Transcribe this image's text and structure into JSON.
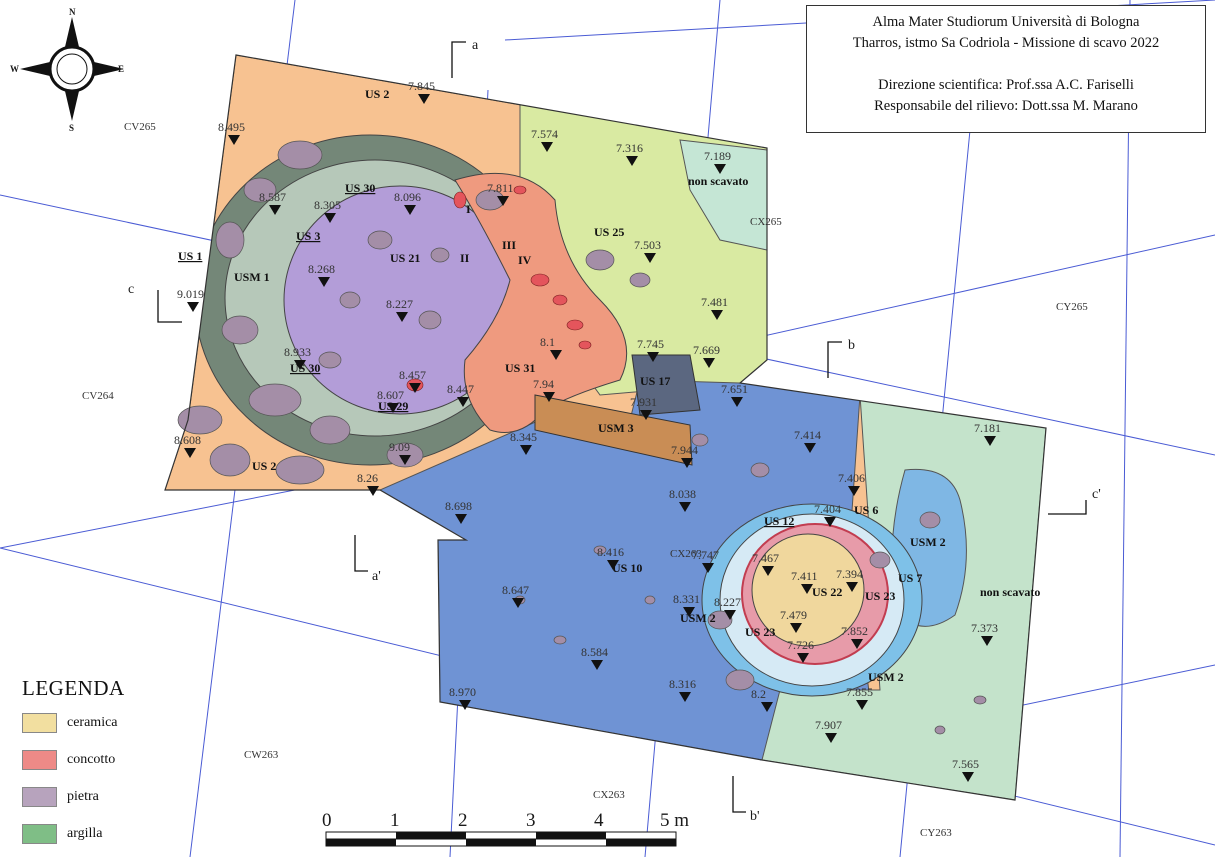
{
  "title_block": {
    "line1": "Alma Mater Studiorum Università di Bologna",
    "line2": "Tharros, istmo Sa Codriola - Missione di scavo 2022",
    "line3": "Direzione scientifica: Prof.ssa A.C. Fariselli",
    "line4": "Responsabile del rilievo: Dott.ssa M. Marano"
  },
  "compass": {
    "n": "N",
    "s": "S",
    "e": "E",
    "w": "W"
  },
  "legend": {
    "title": "LEGENDA",
    "items": [
      {
        "label": "ceramica",
        "color": "#f2dfa0"
      },
      {
        "label": "concotto",
        "color": "#ee8a87"
      },
      {
        "label": "pietra",
        "color": "#b7a3bd"
      },
      {
        "label": "argilla",
        "color": "#7fbe86"
      }
    ]
  },
  "scale_bar": {
    "ticks": [
      "0",
      "1",
      "2",
      "3",
      "4",
      "5 m"
    ]
  },
  "grid_labels": [
    "CV265",
    "CX265",
    "CY265",
    "CV264",
    "CW263",
    "CX263",
    "CY263",
    "CX263"
  ],
  "sections": [
    "a",
    "a'",
    "b",
    "b'",
    "c",
    "c'"
  ],
  "us_labels": [
    "US 2",
    "US 30",
    "US 3",
    "US 1",
    "USM 1",
    "US 21",
    "I",
    "II",
    "III",
    "IV",
    "US 25",
    "US 30",
    "US 29",
    "US 31",
    "US 17",
    "USM 3",
    "US 2",
    "US 10",
    "US 12",
    "US 6",
    "USM 2",
    "US 7",
    "US 22",
    "US 23",
    "US 23",
    "USM 2",
    "USM 2",
    "non scavato",
    "non scavato"
  ],
  "elevations": [
    "7.845",
    "8.495",
    "7.574",
    "7.316",
    "7.189",
    "8.587",
    "8.096",
    "8.305",
    "7.811",
    "7.503",
    "8.268",
    "9.019",
    "8.227",
    "7.481",
    "8.933",
    "8.1",
    "7.745",
    "7.669",
    "8.457",
    "8.607",
    "8.447",
    "7.94",
    "7.931",
    "7.651",
    "8.345",
    "7.414",
    "8.608",
    "9.09",
    "8.26",
    "7.944",
    "7.181",
    "8.038",
    "7.406",
    "8.698",
    "7.404",
    "8.416",
    "7.747",
    "7.467",
    "7.411",
    "7.394",
    "8.647",
    "8.331",
    "8.227",
    "7.479",
    "7.852",
    "7.373",
    "7.726",
    "8.584",
    "8.316",
    "7.855",
    "8.970",
    "8.2",
    "7.907",
    "7.565"
  ]
}
